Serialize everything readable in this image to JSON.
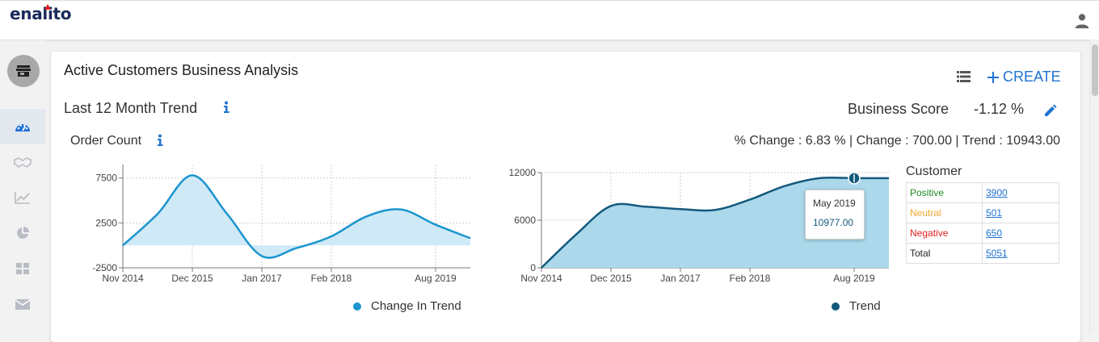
{
  "app": {
    "logo": "enalito"
  },
  "page": {
    "title": "Active Customers Business Analysis",
    "create_label": "CREATE",
    "trend_title": "Last 12 Month Trend",
    "business_score_label": "Business Score",
    "business_score_value": "-1.12 %",
    "order_label": "Order Count",
    "stats_line": "% Change : 6.83 % | Change : 700.00 | Trend : 10943.00"
  },
  "sidebar": {
    "items": [
      {
        "icon": "store-icon"
      },
      {
        "icon": "dashboard-icon",
        "active": true
      },
      {
        "icon": "handshake-icon"
      },
      {
        "icon": "line-chart-icon"
      },
      {
        "icon": "pie-chart-icon"
      },
      {
        "icon": "grid-icon"
      },
      {
        "icon": "mail-icon"
      }
    ]
  },
  "colors": {
    "accent": "#1e73d2",
    "change_line": "#1b95cf",
    "change_fill": "#cfe9f6",
    "trend_line": "#14597d",
    "trend_fill": "#acd8ec",
    "positive": "#1d8a24",
    "neutral": "#f0a830",
    "negative": "#e02020"
  },
  "chart_data": [
    {
      "type": "area",
      "x": [
        "Nov 2014",
        "Jun 2015",
        "Dec 2015",
        "Jul 2016",
        "Jan 2017",
        "Aug 2017",
        "Feb 2018",
        "Sep 2018",
        "Mar 2019",
        "Aug 2019",
        "Dec 2019"
      ],
      "xticks": [
        "Nov 2014",
        "Dec 2015",
        "Jan 2017",
        "Feb 2018",
        "Aug 2019"
      ],
      "yticks": [
        "7500",
        "2500",
        "-2500"
      ],
      "ylim": [
        -2500,
        9000
      ],
      "series": [
        {
          "name": "Change In Trend",
          "values": [
            0,
            3500,
            7800,
            3500,
            -1200,
            -300,
            1000,
            3200,
            4000,
            2300,
            800
          ]
        }
      ],
      "legend": "bottom"
    },
    {
      "type": "area",
      "x": [
        "Nov 2014",
        "Jun 2015",
        "Dec 2015",
        "Jul 2016",
        "Jan 2017",
        "Aug 2017",
        "Feb 2018",
        "Sep 2018",
        "Mar 2019",
        "Aug 2019",
        "Dec 2019"
      ],
      "xticks": [
        "Nov 2014",
        "Dec 2015",
        "Jan 2017",
        "Feb 2018",
        "Aug 2019"
      ],
      "yticks": [
        "12000",
        "6000",
        "0"
      ],
      "ylim": [
        0,
        12000
      ],
      "series": [
        {
          "name": "Trend",
          "values": [
            0,
            4200,
            7800,
            7700,
            7400,
            7300,
            8600,
            10300,
            11300,
            11300,
            11300
          ]
        }
      ],
      "tooltip": {
        "label": "May 2019",
        "value": "10977.00"
      },
      "legend": "bottom"
    }
  ],
  "customer": {
    "title": "Customer",
    "rows": [
      {
        "label": "Positive",
        "value": "3900"
      },
      {
        "label": "Neutral",
        "value": "501"
      },
      {
        "label": "Negative",
        "value": "650"
      },
      {
        "label": "Total",
        "value": "5051"
      }
    ]
  }
}
